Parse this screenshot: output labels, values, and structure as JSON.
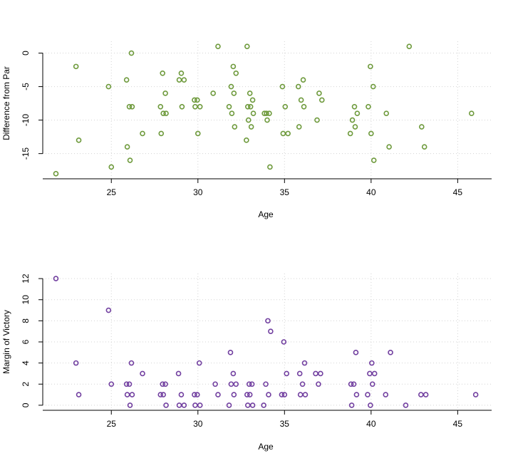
{
  "chart_data": [
    {
      "type": "scatter",
      "title": "",
      "xlabel": "Age",
      "ylabel": "Difference from Par",
      "xlim": [
        22,
        46
      ],
      "ylim": [
        -18,
        1
      ],
      "xticks": [
        25,
        30,
        35,
        40,
        45
      ],
      "yticks": [
        0,
        -5,
        -10,
        -15
      ],
      "grid": true,
      "color": "#6e9a3c",
      "marker": "open-circle",
      "points": [
        [
          22,
          -18
        ],
        [
          23,
          -2
        ],
        [
          23,
          -13
        ],
        [
          25,
          -5
        ],
        [
          25,
          -17
        ],
        [
          26,
          0
        ],
        [
          26,
          -4
        ],
        [
          26,
          -8
        ],
        [
          26,
          -8
        ],
        [
          26,
          -14
        ],
        [
          26,
          -16
        ],
        [
          27,
          -12
        ],
        [
          28,
          -3
        ],
        [
          28,
          -6
        ],
        [
          28,
          -8
        ],
        [
          28,
          -9
        ],
        [
          28,
          -9
        ],
        [
          28,
          -12
        ],
        [
          29,
          -3
        ],
        [
          29,
          -4
        ],
        [
          29,
          -4
        ],
        [
          29,
          -8
        ],
        [
          30,
          -7
        ],
        [
          30,
          -7
        ],
        [
          30,
          -8
        ],
        [
          30,
          -8
        ],
        [
          30,
          -12
        ],
        [
          31,
          1
        ],
        [
          31,
          -6
        ],
        [
          32,
          -2
        ],
        [
          32,
          -3
        ],
        [
          32,
          -5
        ],
        [
          32,
          -6
        ],
        [
          32,
          -8
        ],
        [
          32,
          -9
        ],
        [
          32,
          -11
        ],
        [
          33,
          1
        ],
        [
          33,
          -6
        ],
        [
          33,
          -7
        ],
        [
          33,
          -8
        ],
        [
          33,
          -8
        ],
        [
          33,
          -9
        ],
        [
          33,
          -10
        ],
        [
          33,
          -11
        ],
        [
          33,
          -13
        ],
        [
          34,
          -9
        ],
        [
          34,
          -9
        ],
        [
          34,
          -9
        ],
        [
          34,
          -10
        ],
        [
          34,
          -17
        ],
        [
          35,
          -5
        ],
        [
          35,
          -8
        ],
        [
          35,
          -12
        ],
        [
          35,
          -12
        ],
        [
          36,
          -4
        ],
        [
          36,
          -5
        ],
        [
          36,
          -7
        ],
        [
          36,
          -8
        ],
        [
          36,
          -11
        ],
        [
          37,
          -6
        ],
        [
          37,
          -7
        ],
        [
          37,
          -10
        ],
        [
          39,
          -8
        ],
        [
          39,
          -9
        ],
        [
          39,
          -10
        ],
        [
          39,
          -11
        ],
        [
          39,
          -12
        ],
        [
          40,
          -2
        ],
        [
          40,
          -5
        ],
        [
          40,
          -8
        ],
        [
          40,
          -12
        ],
        [
          40,
          -16
        ],
        [
          41,
          -9
        ],
        [
          41,
          -14
        ],
        [
          42,
          1
        ],
        [
          43,
          -11
        ],
        [
          43,
          -14
        ],
        [
          46,
          -9
        ]
      ]
    },
    {
      "type": "scatter",
      "title": "",
      "xlabel": "Age",
      "ylabel": "Margin of Victory",
      "xlim": [
        22,
        46
      ],
      "ylim": [
        0,
        12
      ],
      "xticks": [
        25,
        30,
        35,
        40,
        45
      ],
      "yticks": [
        0,
        2,
        4,
        6,
        8,
        10,
        12
      ],
      "grid": true,
      "color": "#7240a0",
      "marker": "open-circle",
      "points": [
        [
          22,
          12
        ],
        [
          23,
          4
        ],
        [
          23,
          1
        ],
        [
          25,
          9
        ],
        [
          25,
          2
        ],
        [
          26,
          4
        ],
        [
          26,
          2
        ],
        [
          26,
          2
        ],
        [
          26,
          1
        ],
        [
          26,
          1
        ],
        [
          26,
          0
        ],
        [
          27,
          3
        ],
        [
          28,
          2
        ],
        [
          28,
          2
        ],
        [
          28,
          1
        ],
        [
          28,
          1
        ],
        [
          28,
          0
        ],
        [
          29,
          3
        ],
        [
          29,
          1
        ],
        [
          29,
          0
        ],
        [
          29,
          0
        ],
        [
          30,
          4
        ],
        [
          30,
          1
        ],
        [
          30,
          1
        ],
        [
          30,
          0
        ],
        [
          30,
          0
        ],
        [
          31,
          2
        ],
        [
          31,
          1
        ],
        [
          32,
          5
        ],
        [
          32,
          3
        ],
        [
          32,
          2
        ],
        [
          32,
          2
        ],
        [
          32,
          1
        ],
        [
          32,
          0
        ],
        [
          33,
          2
        ],
        [
          33,
          2
        ],
        [
          33,
          1
        ],
        [
          33,
          1
        ],
        [
          33,
          0
        ],
        [
          33,
          0
        ],
        [
          34,
          8
        ],
        [
          34,
          7
        ],
        [
          34,
          2
        ],
        [
          34,
          1
        ],
        [
          34,
          0
        ],
        [
          35,
          6
        ],
        [
          35,
          3
        ],
        [
          35,
          1
        ],
        [
          35,
          1
        ],
        [
          36,
          4
        ],
        [
          36,
          3
        ],
        [
          36,
          2
        ],
        [
          36,
          1
        ],
        [
          36,
          1
        ],
        [
          37,
          3
        ],
        [
          37,
          3
        ],
        [
          37,
          2
        ],
        [
          39,
          5
        ],
        [
          39,
          2
        ],
        [
          39,
          2
        ],
        [
          39,
          1
        ],
        [
          39,
          0
        ],
        [
          40,
          4
        ],
        [
          40,
          3
        ],
        [
          40,
          3
        ],
        [
          40,
          2
        ],
        [
          40,
          1
        ],
        [
          40,
          0
        ],
        [
          41,
          5
        ],
        [
          41,
          1
        ],
        [
          42,
          0
        ],
        [
          43,
          1
        ],
        [
          43,
          1
        ],
        [
          46,
          1
        ]
      ]
    }
  ]
}
